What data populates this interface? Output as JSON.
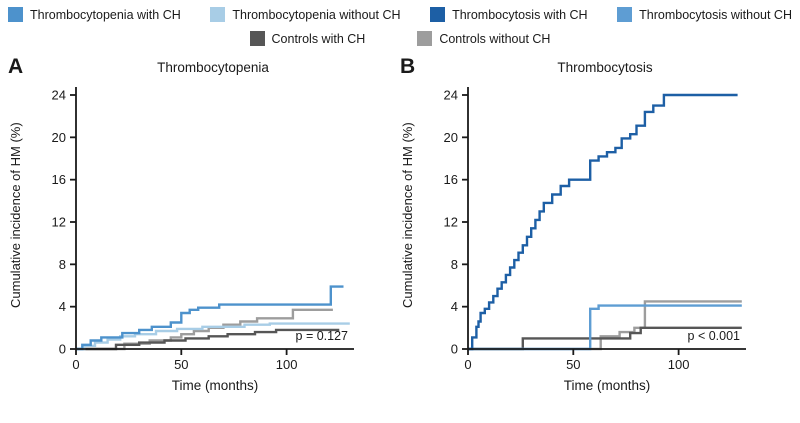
{
  "figure": {
    "background": "#ffffff",
    "text_color": "#1a1a1a"
  },
  "legend": {
    "rows": [
      {
        "items": [
          {
            "label": "Thrombocytopenia with CH",
            "color": "#4d92cc"
          },
          {
            "label": "Thrombocytopenia without CH",
            "color": "#a8cde6"
          },
          {
            "label": "Thrombocytosis with CH",
            "color": "#1d5fa5"
          },
          {
            "label": "Thrombocytosis without CH",
            "color": "#5e9dd3"
          }
        ]
      },
      {
        "items": [
          {
            "label": "Controls with CH",
            "color": "#565656"
          },
          {
            "label": "Controls without CH",
            "color": "#9d9d9d"
          }
        ]
      }
    ]
  },
  "panels": [
    {
      "letter": "A"
    },
    {
      "letter": "B"
    }
  ],
  "chart_data": [
    {
      "type": "line",
      "subtype": "step",
      "title": "Thrombocytopenia",
      "xlabel": "Time (months)",
      "ylabel": "Cumulative incidence of HM (%)",
      "xlim": [
        0,
        132
      ],
      "ylim": [
        0,
        24
      ],
      "xticks": [
        0,
        50,
        100
      ],
      "yticks": [
        0,
        4,
        8,
        12,
        16,
        20,
        24
      ],
      "grid": false,
      "legend_position": "top",
      "annotation": "p = 0.127",
      "series": [
        {
          "name": "Controls without CH",
          "color": "#9d9d9d",
          "points": [
            [
              0,
              0
            ],
            [
              20,
              0
            ],
            [
              23,
              0.5
            ],
            [
              35,
              0.8
            ],
            [
              45,
              1.1
            ],
            [
              50,
              1.4
            ],
            [
              56,
              1.7
            ],
            [
              63,
              2.0
            ],
            [
              70,
              2.3
            ],
            [
              78,
              2.6
            ],
            [
              86,
              2.9
            ],
            [
              103,
              3.7
            ],
            [
              122,
              3.7
            ]
          ]
        },
        {
          "name": "Controls with CH",
          "color": "#565656",
          "points": [
            [
              0,
              0
            ],
            [
              17,
              0
            ],
            [
              19,
              0.4
            ],
            [
              30,
              0.6
            ],
            [
              42,
              0.8
            ],
            [
              52,
              1.0
            ],
            [
              63,
              1.2
            ],
            [
              72,
              1.4
            ],
            [
              85,
              1.6
            ],
            [
              95,
              1.8
            ],
            [
              125,
              1.8
            ]
          ]
        },
        {
          "name": "Thrombocytopenia without CH",
          "color": "#a8cde6",
          "points": [
            [
              0,
              0
            ],
            [
              4,
              0.3
            ],
            [
              9,
              0.6
            ],
            [
              15,
              0.9
            ],
            [
              21,
              1.2
            ],
            [
              28,
              1.4
            ],
            [
              38,
              1.7
            ],
            [
              48,
              1.9
            ],
            [
              60,
              2.1
            ],
            [
              80,
              2.3
            ],
            [
              92,
              2.4
            ],
            [
              130,
              2.4
            ]
          ]
        },
        {
          "name": "Thrombocytopenia with CH",
          "color": "#4d92cc",
          "points": [
            [
              0,
              0
            ],
            [
              3,
              0.4
            ],
            [
              7,
              0.8
            ],
            [
              12,
              1.1
            ],
            [
              22,
              1.5
            ],
            [
              30,
              1.8
            ],
            [
              36,
              2.1
            ],
            [
              45,
              2.5
            ],
            [
              50,
              3.4
            ],
            [
              54,
              3.7
            ],
            [
              58,
              3.9
            ],
            [
              68,
              4.2
            ],
            [
              118,
              4.2
            ],
            [
              121,
              5.9
            ],
            [
              127,
              5.9
            ]
          ]
        }
      ]
    },
    {
      "type": "line",
      "subtype": "step",
      "title": "Thrombocytosis",
      "xlabel": "Time (months)",
      "ylabel": "Cumulative incidence of HM (%)",
      "xlim": [
        0,
        132
      ],
      "ylim": [
        0,
        24
      ],
      "xticks": [
        0,
        50,
        100
      ],
      "yticks": [
        0,
        4,
        8,
        12,
        16,
        20,
        24
      ],
      "grid": false,
      "legend_position": "top",
      "annotation": "p < 0.001",
      "series": [
        {
          "name": "Controls without CH",
          "color": "#9d9d9d",
          "points": [
            [
              0,
              0
            ],
            [
              61,
              0
            ],
            [
              63,
              1.2
            ],
            [
              72,
              1.6
            ],
            [
              79,
              2.0
            ],
            [
              84,
              4.5
            ],
            [
              130,
              4.5
            ]
          ]
        },
        {
          "name": "Controls with CH",
          "color": "#565656",
          "points": [
            [
              0,
              0
            ],
            [
              24,
              0
            ],
            [
              26,
              1.0
            ],
            [
              74,
              1.0
            ],
            [
              77,
              1.5
            ],
            [
              82,
              2.0
            ],
            [
              130,
              2.0
            ]
          ]
        },
        {
          "name": "Thrombocytosis without CH",
          "color": "#5e9dd3",
          "points": [
            [
              0,
              0
            ],
            [
              56,
              0
            ],
            [
              58,
              3.8
            ],
            [
              62,
              4.1
            ],
            [
              130,
              4.1
            ]
          ]
        },
        {
          "name": "Thrombocytosis with CH",
          "color": "#1d5fa5",
          "points": [
            [
              0,
              0
            ],
            [
              2,
              1.1
            ],
            [
              4,
              2.1
            ],
            [
              5,
              2.6
            ],
            [
              6,
              3.4
            ],
            [
              8,
              3.8
            ],
            [
              10,
              4.4
            ],
            [
              12,
              5.0
            ],
            [
              14,
              5.7
            ],
            [
              16,
              6.3
            ],
            [
              18,
              7.0
            ],
            [
              20,
              7.7
            ],
            [
              22,
              8.4
            ],
            [
              24,
              9.1
            ],
            [
              26,
              9.8
            ],
            [
              28,
              10.6
            ],
            [
              30,
              11.4
            ],
            [
              32,
              12.2
            ],
            [
              34,
              13.0
            ],
            [
              36,
              13.8
            ],
            [
              40,
              14.6
            ],
            [
              44,
              15.4
            ],
            [
              48,
              16.0
            ],
            [
              56,
              16.0
            ],
            [
              58,
              17.8
            ],
            [
              62,
              18.2
            ],
            [
              66,
              18.6
            ],
            [
              70,
              19.0
            ],
            [
              73,
              19.9
            ],
            [
              77,
              20.3
            ],
            [
              80,
              21.1
            ],
            [
              84,
              22.4
            ],
            [
              88,
              23.0
            ],
            [
              93,
              24.0
            ],
            [
              128,
              24.0
            ]
          ]
        }
      ]
    }
  ]
}
